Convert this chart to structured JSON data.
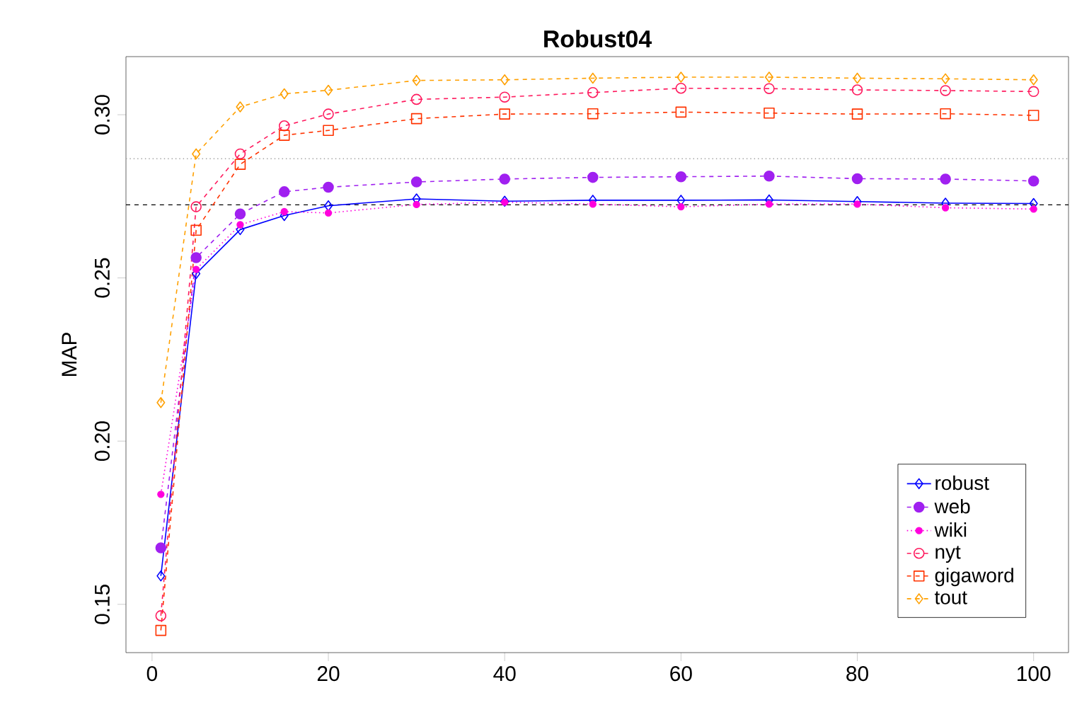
{
  "chart_data": {
    "type": "line",
    "title": "Robust04",
    "ylabel": "MAP",
    "x": [
      1,
      5,
      10,
      15,
      20,
      30,
      40,
      50,
      60,
      70,
      80,
      90,
      100
    ],
    "xlim": [
      -2.96,
      103.96
    ],
    "ylim": [
      0.1352,
      0.3178
    ],
    "xticks": [
      0,
      20,
      40,
      60,
      80,
      100
    ],
    "yticks": [
      0.15,
      {
        "value": 0.2,
        "label": "0.20"
      },
      0.25,
      {
        "value": 0.3,
        "label": "0.30"
      }
    ],
    "grid": false,
    "legend": "bottom right",
    "ref_lines": [
      {
        "axis": "y",
        "value": 0.2865,
        "color": "#a0a0a0",
        "line_style": "dotted"
      },
      {
        "axis": "y",
        "value": 0.2724,
        "color": "#000000",
        "line_style": "dashed"
      }
    ],
    "series": [
      {
        "name": "robust",
        "color": "#0000ff",
        "marker": "diamond",
        "line_style": "solid",
        "values": [
          0.1587,
          0.2513,
          0.2648,
          0.2691,
          0.2721,
          0.2742,
          0.2735,
          0.2738,
          0.2738,
          0.2739,
          0.2734,
          0.2729,
          0.2728
        ]
      },
      {
        "name": "web",
        "color": "#a020f0",
        "marker": "circle",
        "line_style": "dashed",
        "values": [
          0.1673,
          0.2562,
          0.2696,
          0.2764,
          0.2778,
          0.2794,
          0.2803,
          0.2808,
          0.281,
          0.2812,
          0.2804,
          0.2803,
          0.2797
        ]
      },
      {
        "name": "wiki",
        "color": "#ff00dd",
        "marker": "circle",
        "line_style": "dotted",
        "values": [
          0.1837,
          0.2526,
          0.2663,
          0.2703,
          0.2699,
          0.2725,
          0.2732,
          0.2726,
          0.2718,
          0.2726,
          0.2726,
          0.2715,
          0.2711
        ]
      },
      {
        "name": "nyt",
        "color": "#ff1a5e",
        "marker": "circle",
        "line_style": "dashed",
        "values": [
          0.1465,
          0.2718,
          0.288,
          0.2966,
          0.3002,
          0.3047,
          0.3054,
          0.3068,
          0.3081,
          0.308,
          0.3076,
          0.3074,
          0.3071
        ]
      },
      {
        "name": "gigaword",
        "color": "#ff3300",
        "marker": "square",
        "line_style": "dashed",
        "values": [
          0.142,
          0.2646,
          0.2848,
          0.2937,
          0.2952,
          0.2988,
          0.3002,
          0.3003,
          0.3008,
          0.3005,
          0.3002,
          0.3003,
          0.2998
        ]
      },
      {
        "name": "tout",
        "color": "#ffa000",
        "marker": "diamond",
        "line_style": "dashed",
        "values": [
          0.2118,
          0.288,
          0.3024,
          0.3064,
          0.3075,
          0.3105,
          0.3107,
          0.3112,
          0.3115,
          0.3115,
          0.3112,
          0.311,
          0.3107
        ]
      }
    ]
  }
}
